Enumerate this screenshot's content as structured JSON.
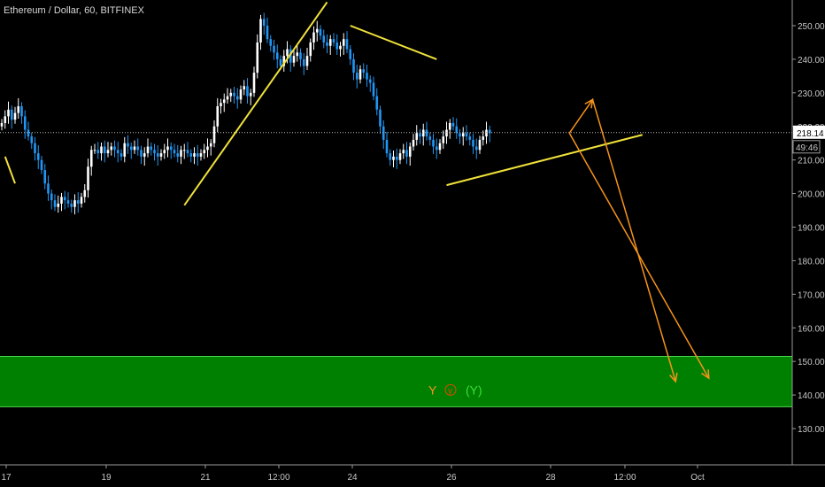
{
  "header": {
    "title": "Ethereum / Dollar, 60, BITFINEX"
  },
  "price_badge": {
    "price": "218.14",
    "countdown": "49:46"
  },
  "colors": {
    "background": "#000000",
    "candle_up": "#ffffff",
    "candle_down": "#2196f3",
    "trendline": "#f0e23a",
    "projection": "#f7931a",
    "zone_fill": "#008000",
    "zone_border": "#4cd64c",
    "axis_text": "#c8c8c8",
    "badge_bg": "#ffffff",
    "label_y_letter": "#f7931a",
    "label_y_circle": "#e04a00",
    "label_y_paren": "#3adf3a"
  },
  "zone_labels": {
    "y1": "Y",
    "y2": "y",
    "y3": "(Y)"
  },
  "chart_data": {
    "type": "candlestick",
    "title": "Ethereum / Dollar, 60, BITFINEX",
    "y_axis_ticks": [
      130,
      140,
      150,
      160,
      170,
      180,
      190,
      200,
      210,
      220,
      230,
      240,
      250
    ],
    "y_axis_labels": [
      "130.00",
      "140.00",
      "150.00",
      "160.00",
      "170.00",
      "180.00",
      "190.00",
      "200.00",
      "210.00",
      "220.00",
      "230.00",
      "240.00",
      "250.00"
    ],
    "x_axis_labels": [
      "17",
      "19",
      "21",
      "12:00",
      "24",
      "26",
      "28",
      "12:00",
      "Oct"
    ],
    "ylim": [
      123,
      255
    ],
    "last_price": 218.14,
    "series_close": [
      221,
      223,
      225,
      222,
      224,
      226,
      223,
      219,
      217,
      215,
      212,
      210,
      207,
      203,
      200,
      198,
      196,
      197,
      199,
      198,
      197,
      196,
      198,
      197,
      199,
      201,
      208,
      213,
      213,
      212,
      214,
      212,
      213,
      214,
      213,
      212,
      211,
      215,
      214,
      213,
      214,
      213,
      211,
      212,
      214,
      213,
      212,
      211,
      212,
      213,
      214,
      213,
      212,
      211,
      213,
      213,
      212,
      211,
      212,
      211,
      212,
      213,
      214,
      215,
      220,
      226,
      227,
      228,
      229,
      230,
      229,
      228,
      231,
      232,
      229,
      230,
      236,
      245,
      252,
      250,
      246,
      244,
      242,
      240,
      238,
      241,
      243,
      239,
      241,
      242,
      240,
      238,
      241,
      245,
      248,
      249,
      247,
      245,
      244,
      246,
      245,
      243,
      244,
      246,
      243,
      240,
      236,
      234,
      237,
      236,
      234,
      233,
      229,
      225,
      220,
      216,
      212,
      210,
      211,
      210,
      212,
      213,
      211,
      214,
      216,
      218,
      217,
      219,
      217,
      216,
      214,
      213,
      215,
      217,
      219,
      221,
      220,
      218,
      217,
      218,
      217,
      216,
      214,
      213,
      216,
      217,
      219,
      218
    ],
    "zone": {
      "low": 136.5,
      "high": 151.5,
      "label": "Y y (Y)"
    },
    "trendlines": [
      {
        "points": [
          [
            1,
            211
          ],
          [
            4,
            203
          ]
        ]
      },
      {
        "points": [
          [
            55,
            196.5
          ],
          [
            98,
            257
          ]
        ]
      },
      {
        "points": [
          [
            105,
            250
          ],
          [
            131,
            240
          ]
        ]
      },
      {
        "points": [
          [
            134,
            202.5
          ],
          [
            193,
            217.5
          ]
        ]
      }
    ],
    "projections": [
      {
        "points": [
          [
            171,
            218
          ],
          [
            178,
            228
          ],
          [
            203,
            144
          ]
        ]
      },
      {
        "points": [
          [
            171,
            218
          ],
          [
            213,
            145
          ]
        ]
      }
    ]
  }
}
